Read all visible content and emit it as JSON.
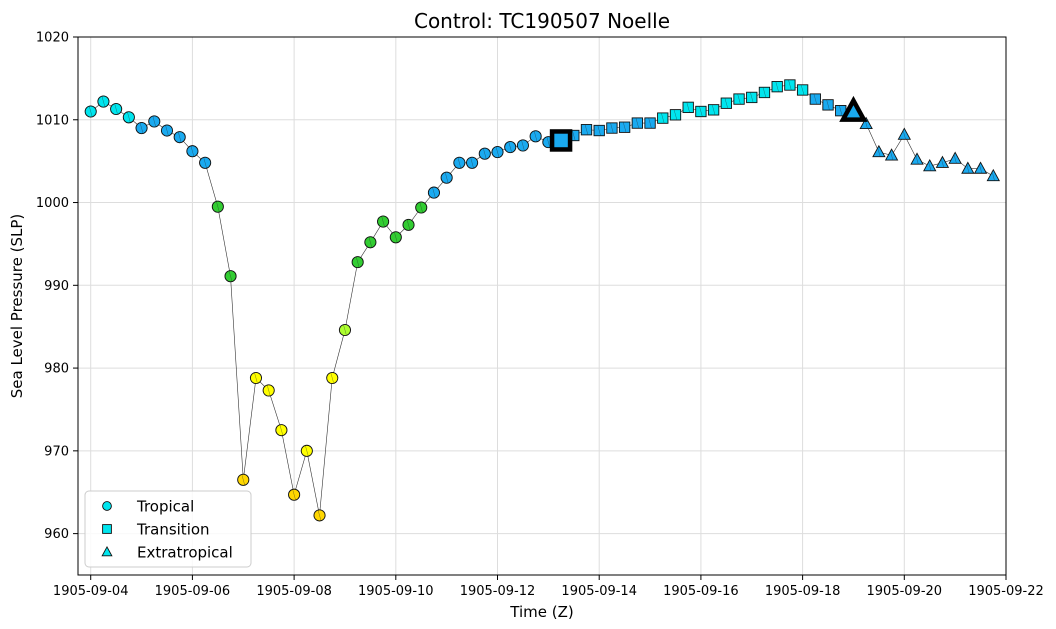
{
  "chart_data": {
    "type": "scatter",
    "title": "Control: TC190507 Noelle",
    "xlabel": "Time (Z)",
    "ylabel": "Sea Level Pressure (SLP)",
    "ylim": [
      955,
      1020
    ],
    "xlim": [
      "1905-09-03T18:00",
      "1905-09-22T00:00"
    ],
    "x_ticks": [
      "1905-09-04",
      "1905-09-06",
      "1905-09-08",
      "1905-09-10",
      "1905-09-12",
      "1905-09-14",
      "1905-09-16",
      "1905-09-18",
      "1905-09-20",
      "1905-09-22"
    ],
    "y_ticks": [
      960,
      970,
      980,
      990,
      1000,
      1010,
      1020
    ],
    "grid": true,
    "legend": {
      "placement": "lower-left",
      "entries": [
        {
          "label": "Tropical",
          "marker": "circle",
          "color": "#00e5ee"
        },
        {
          "label": "Transition",
          "marker": "square",
          "color": "#00e5ee"
        },
        {
          "label": "Extratropical",
          "marker": "triangle",
          "color": "#00e5ee"
        }
      ]
    },
    "points": [
      {
        "t": "1905-09-04T00:00",
        "y": 1011.0,
        "marker": "circle",
        "color": "#00e5ee"
      },
      {
        "t": "1905-09-04T06:00",
        "y": 1012.2,
        "marker": "circle",
        "color": "#00e5ee"
      },
      {
        "t": "1905-09-04T12:00",
        "y": 1011.3,
        "marker": "circle",
        "color": "#00e5ee"
      },
      {
        "t": "1905-09-04T18:00",
        "y": 1010.3,
        "marker": "circle",
        "color": "#00e5ee"
      },
      {
        "t": "1905-09-05T00:00",
        "y": 1009.0,
        "marker": "circle",
        "color": "#1aaaf0"
      },
      {
        "t": "1905-09-05T06:00",
        "y": 1009.8,
        "marker": "circle",
        "color": "#1aaaf0"
      },
      {
        "t": "1905-09-05T12:00",
        "y": 1008.7,
        "marker": "circle",
        "color": "#1aaaf0"
      },
      {
        "t": "1905-09-05T18:00",
        "y": 1007.9,
        "marker": "circle",
        "color": "#1aaaf0"
      },
      {
        "t": "1905-09-06T00:00",
        "y": 1006.2,
        "marker": "circle",
        "color": "#1aaaf0"
      },
      {
        "t": "1905-09-06T06:00",
        "y": 1004.8,
        "marker": "circle",
        "color": "#1aaaf0"
      },
      {
        "t": "1905-09-06T12:00",
        "y": 999.5,
        "marker": "circle",
        "color": "#32cd32"
      },
      {
        "t": "1905-09-06T18:00",
        "y": 991.1,
        "marker": "circle",
        "color": "#32cd32"
      },
      {
        "t": "1905-09-07T00:00",
        "y": 966.5,
        "marker": "circle",
        "color": "#ffd700"
      },
      {
        "t": "1905-09-07T06:00",
        "y": 978.8,
        "marker": "circle",
        "color": "#ffff00"
      },
      {
        "t": "1905-09-07T12:00",
        "y": 977.3,
        "marker": "circle",
        "color": "#ffff00"
      },
      {
        "t": "1905-09-07T18:00",
        "y": 972.5,
        "marker": "circle",
        "color": "#ffff00"
      },
      {
        "t": "1905-09-08T00:00",
        "y": 964.7,
        "marker": "circle",
        "color": "#ffd700"
      },
      {
        "t": "1905-09-08T06:00",
        "y": 970.0,
        "marker": "circle",
        "color": "#ffff00"
      },
      {
        "t": "1905-09-08T12:00",
        "y": 962.2,
        "marker": "circle",
        "color": "#ffd700"
      },
      {
        "t": "1905-09-08T18:00",
        "y": 978.8,
        "marker": "circle",
        "color": "#ffff00"
      },
      {
        "t": "1905-09-09T00:00",
        "y": 984.6,
        "marker": "circle",
        "color": "#adff2f"
      },
      {
        "t": "1905-09-09T06:00",
        "y": 992.8,
        "marker": "circle",
        "color": "#32cd32"
      },
      {
        "t": "1905-09-09T12:00",
        "y": 995.2,
        "marker": "circle",
        "color": "#32cd32"
      },
      {
        "t": "1905-09-09T18:00",
        "y": 997.7,
        "marker": "circle",
        "color": "#32cd32"
      },
      {
        "t": "1905-09-10T00:00",
        "y": 995.8,
        "marker": "circle",
        "color": "#32cd32"
      },
      {
        "t": "1905-09-10T06:00",
        "y": 997.3,
        "marker": "circle",
        "color": "#32cd32"
      },
      {
        "t": "1905-09-10T12:00",
        "y": 999.4,
        "marker": "circle",
        "color": "#32cd32"
      },
      {
        "t": "1905-09-10T18:00",
        "y": 1001.2,
        "marker": "circle",
        "color": "#1aaaf0"
      },
      {
        "t": "1905-09-11T00:00",
        "y": 1003.0,
        "marker": "circle",
        "color": "#1aaaf0"
      },
      {
        "t": "1905-09-11T06:00",
        "y": 1004.8,
        "marker": "circle",
        "color": "#1aaaf0"
      },
      {
        "t": "1905-09-11T12:00",
        "y": 1004.8,
        "marker": "circle",
        "color": "#1aaaf0"
      },
      {
        "t": "1905-09-11T18:00",
        "y": 1005.9,
        "marker": "circle",
        "color": "#1aaaf0"
      },
      {
        "t": "1905-09-12T00:00",
        "y": 1006.1,
        "marker": "circle",
        "color": "#1aaaf0"
      },
      {
        "t": "1905-09-12T06:00",
        "y": 1006.7,
        "marker": "circle",
        "color": "#1aaaf0"
      },
      {
        "t": "1905-09-12T12:00",
        "y": 1006.9,
        "marker": "circle",
        "color": "#1aaaf0"
      },
      {
        "t": "1905-09-12T18:00",
        "y": 1008.0,
        "marker": "circle",
        "color": "#1aaaf0"
      },
      {
        "t": "1905-09-13T00:00",
        "y": 1007.3,
        "marker": "circle",
        "color": "#1aaaf0"
      },
      {
        "t": "1905-09-13T06:00",
        "y": 1007.5,
        "marker": "square",
        "color": "#1aaaf0"
      },
      {
        "t": "1905-09-13T12:00",
        "y": 1008.1,
        "marker": "square",
        "color": "#1aaaf0"
      },
      {
        "t": "1905-09-13T18:00",
        "y": 1008.8,
        "marker": "square",
        "color": "#1aaaf0"
      },
      {
        "t": "1905-09-14T00:00",
        "y": 1008.7,
        "marker": "square",
        "color": "#1aaaf0"
      },
      {
        "t": "1905-09-14T06:00",
        "y": 1009.0,
        "marker": "square",
        "color": "#1aaaf0"
      },
      {
        "t": "1905-09-14T12:00",
        "y": 1009.1,
        "marker": "square",
        "color": "#1aaaf0"
      },
      {
        "t": "1905-09-14T18:00",
        "y": 1009.6,
        "marker": "square",
        "color": "#1aaaf0"
      },
      {
        "t": "1905-09-15T00:00",
        "y": 1009.6,
        "marker": "square",
        "color": "#1aaaf0"
      },
      {
        "t": "1905-09-15T06:00",
        "y": 1010.2,
        "marker": "square",
        "color": "#00e5ee"
      },
      {
        "t": "1905-09-15T12:00",
        "y": 1010.6,
        "marker": "square",
        "color": "#00e5ee"
      },
      {
        "t": "1905-09-15T18:00",
        "y": 1011.5,
        "marker": "square",
        "color": "#00e5ee"
      },
      {
        "t": "1905-09-16T00:00",
        "y": 1011.0,
        "marker": "square",
        "color": "#00e5ee"
      },
      {
        "t": "1905-09-16T06:00",
        "y": 1011.2,
        "marker": "square",
        "color": "#00e5ee"
      },
      {
        "t": "1905-09-16T12:00",
        "y": 1012.0,
        "marker": "square",
        "color": "#00e5ee"
      },
      {
        "t": "1905-09-16T18:00",
        "y": 1012.5,
        "marker": "square",
        "color": "#00e5ee"
      },
      {
        "t": "1905-09-17T00:00",
        "y": 1012.7,
        "marker": "square",
        "color": "#00e5ee"
      },
      {
        "t": "1905-09-17T06:00",
        "y": 1013.3,
        "marker": "square",
        "color": "#00e5ee"
      },
      {
        "t": "1905-09-17T12:00",
        "y": 1014.0,
        "marker": "square",
        "color": "#00e5ee"
      },
      {
        "t": "1905-09-17T18:00",
        "y": 1014.2,
        "marker": "square",
        "color": "#00e5ee"
      },
      {
        "t": "1905-09-18T00:00",
        "y": 1013.6,
        "marker": "square",
        "color": "#00e5ee"
      },
      {
        "t": "1905-09-18T06:00",
        "y": 1012.5,
        "marker": "square",
        "color": "#1aaaf0"
      },
      {
        "t": "1905-09-18T12:00",
        "y": 1011.8,
        "marker": "square",
        "color": "#1aaaf0"
      },
      {
        "t": "1905-09-18T18:00",
        "y": 1011.1,
        "marker": "square",
        "color": "#1aaaf0"
      },
      {
        "t": "1905-09-19T00:00",
        "y": 1011.0,
        "marker": "triangle",
        "color": "#1aaaf0"
      },
      {
        "t": "1905-09-19T06:00",
        "y": 1009.5,
        "marker": "triangle",
        "color": "#1aaaf0"
      },
      {
        "t": "1905-09-19T12:00",
        "y": 1006.1,
        "marker": "triangle",
        "color": "#1aaaf0"
      },
      {
        "t": "1905-09-19T18:00",
        "y": 1005.7,
        "marker": "triangle",
        "color": "#1aaaf0"
      },
      {
        "t": "1905-09-20T00:00",
        "y": 1008.2,
        "marker": "triangle",
        "color": "#1aaaf0"
      },
      {
        "t": "1905-09-20T06:00",
        "y": 1005.2,
        "marker": "triangle",
        "color": "#1aaaf0"
      },
      {
        "t": "1905-09-20T12:00",
        "y": 1004.4,
        "marker": "triangle",
        "color": "#1aaaf0"
      },
      {
        "t": "1905-09-20T18:00",
        "y": 1004.8,
        "marker": "triangle",
        "color": "#1aaaf0"
      },
      {
        "t": "1905-09-21T00:00",
        "y": 1005.3,
        "marker": "triangle",
        "color": "#1aaaf0"
      },
      {
        "t": "1905-09-21T06:00",
        "y": 1004.1,
        "marker": "triangle",
        "color": "#1aaaf0"
      },
      {
        "t": "1905-09-21T12:00",
        "y": 1004.1,
        "marker": "triangle",
        "color": "#1aaaf0"
      },
      {
        "t": "1905-09-21T18:00",
        "y": 1003.2,
        "marker": "triangle",
        "color": "#1aaaf0"
      }
    ],
    "highlights": [
      {
        "t": "1905-09-13T06:00",
        "y": 1007.5,
        "marker": "square",
        "color": "#1aaaf0"
      },
      {
        "t": "1905-09-19T00:00",
        "y": 1011.0,
        "marker": "triangle",
        "color": "#1aaaf0"
      }
    ]
  }
}
